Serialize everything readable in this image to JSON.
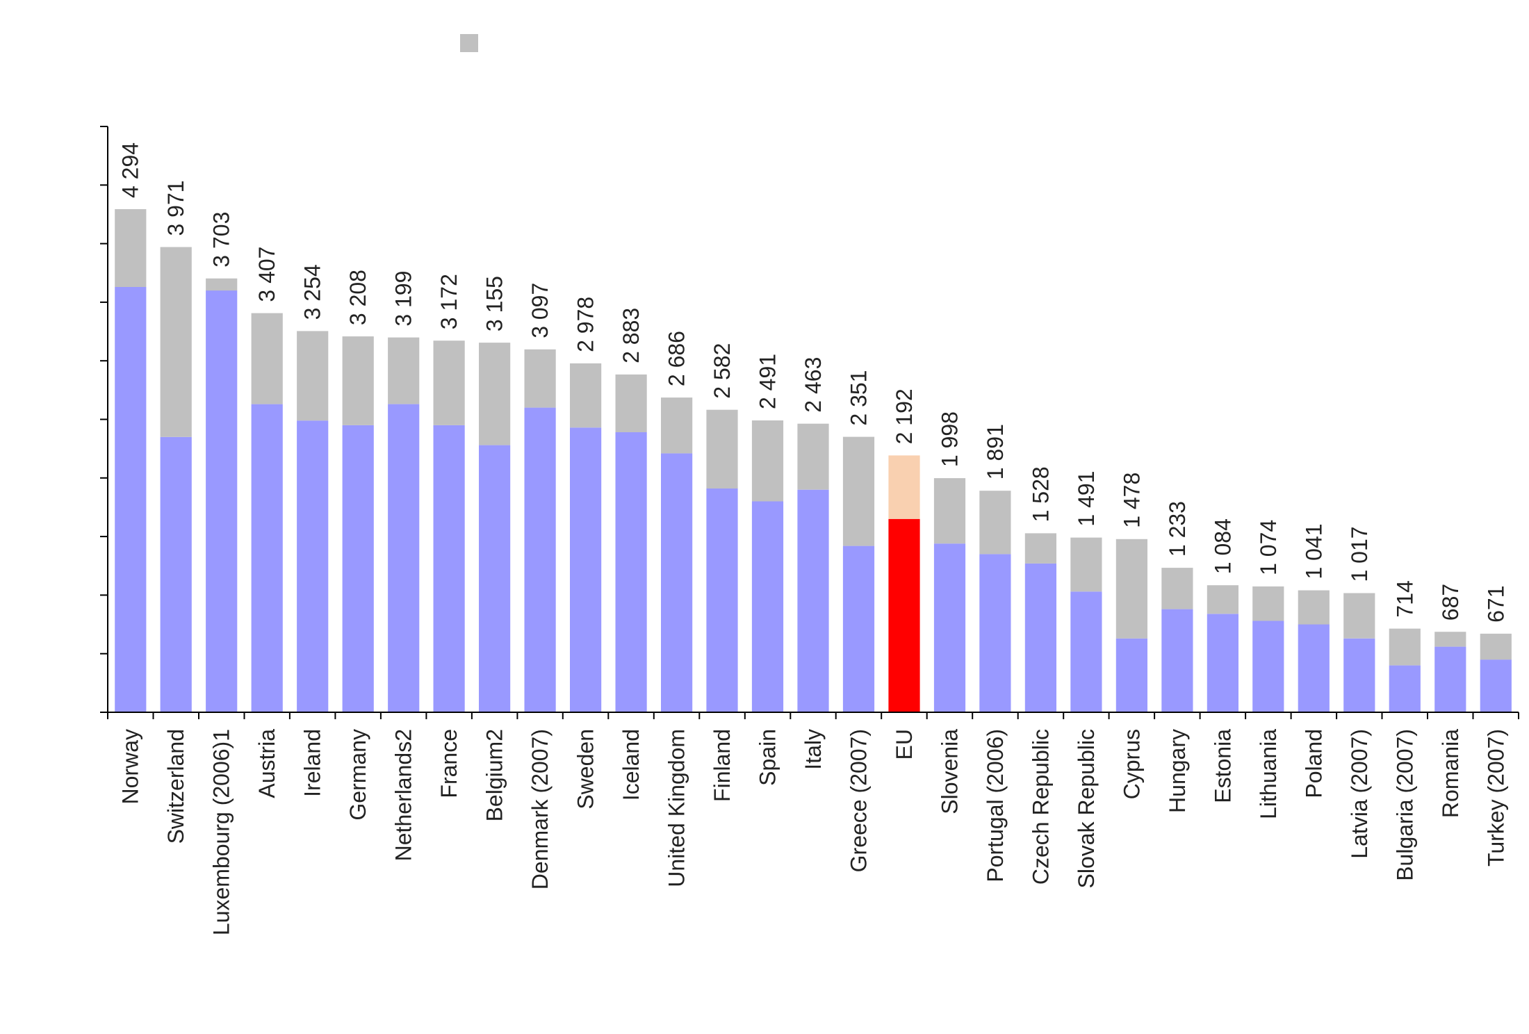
{
  "chart_data": {
    "type": "bar",
    "stacked": true,
    "title": "",
    "xlabel": "",
    "ylabel": "",
    "ylim": [
      0,
      5000
    ],
    "y_tick_step": 500,
    "y_tick_labels_shown": false,
    "grid": false,
    "legend": {
      "placement": "top-center",
      "entries": [
        ""
      ]
    },
    "categories": [
      "Norway",
      "Switzerland",
      "Luxembourg (2006)1",
      "Austria",
      "Ireland",
      "Germany",
      "Netherlands2",
      "France",
      "Belgium2",
      "Denmark (2007)",
      "Sweden",
      "Iceland",
      "United Kingdom",
      "Finland",
      "Spain",
      "Italy",
      "Greece (2007)",
      "EU",
      "Slovenia",
      "Portugal (2006)",
      "Czech Republic",
      "Slovak Republic",
      "Cyprus",
      "Hungary",
      "Estonia",
      "Lithuania",
      "Poland",
      "Latvia (2007)",
      "Bulgaria (2007)",
      "Romania",
      "Turkey (2007)"
    ],
    "value_labels": [
      "4 294",
      "3 971",
      "3 703",
      "3 407",
      "3 254",
      "3 208",
      "3 199",
      "3 172",
      "3 155",
      "3 097",
      "2 978",
      "2 883",
      "2 686",
      "2 582",
      "2 491",
      "2 463",
      "2 351",
      "2 192",
      "1 998",
      "1 891",
      "1 528",
      "1 491",
      "1 478",
      "1 233",
      "1 084",
      "1 074",
      "1 041",
      "1 017",
      "714",
      "687",
      "671"
    ],
    "series": [
      {
        "values": [
          3630,
          2350,
          3600,
          2630,
          2490,
          2450,
          2630,
          2450,
          2280,
          2600,
          2430,
          2390,
          2210,
          1910,
          1800,
          1900,
          1420,
          1650,
          1440,
          1350,
          1270,
          1030,
          630,
          880,
          840,
          780,
          750,
          630,
          400,
          560,
          450
        ]
      },
      {
        "values": [
          664,
          1621,
          103,
          777,
          764,
          758,
          569,
          722,
          875,
          497,
          548,
          493,
          476,
          672,
          691,
          563,
          931,
          542,
          558,
          541,
          258,
          461,
          848,
          353,
          244,
          294,
          291,
          387,
          314,
          127,
          221
        ]
      }
    ],
    "colors": {
      "lower": "#9999ff",
      "upper": "#c0c0c0",
      "highlight_lower": "#ff0000",
      "highlight_upper": "#f9d0b0",
      "axis": "#000000"
    },
    "highlight_category": "EU"
  }
}
